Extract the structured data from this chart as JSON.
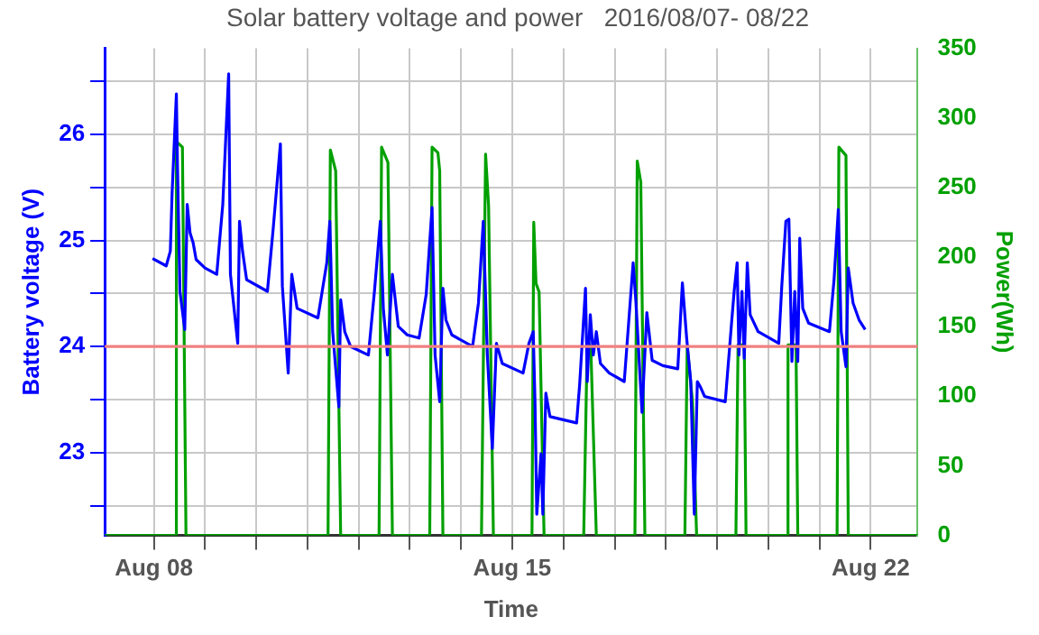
{
  "chart_data": {
    "type": "line",
    "title": "Solar battery voltage and power   2016/08/07- 08/22",
    "xlabel": "Time",
    "ylabel": "Battery voltage (V)",
    "y2label": "Power(Wh)",
    "xlim": [
      "2016-08-07T01:00",
      "2016-08-22T22:00"
    ],
    "xticks": [
      {
        "value": "2016-08-08",
        "label": "Aug 08"
      },
      {
        "value": "2016-08-09",
        "label": null
      },
      {
        "value": "2016-08-10",
        "label": null
      },
      {
        "value": "2016-08-11",
        "label": null
      },
      {
        "value": "2016-08-12",
        "label": null
      },
      {
        "value": "2016-08-13",
        "label": null
      },
      {
        "value": "2016-08-14",
        "label": null
      },
      {
        "value": "2016-08-15",
        "label": "Aug 15"
      },
      {
        "value": "2016-08-16",
        "label": null
      },
      {
        "value": "2016-08-17",
        "label": null
      },
      {
        "value": "2016-08-18",
        "label": null
      },
      {
        "value": "2016-08-19",
        "label": null
      },
      {
        "value": "2016-08-20",
        "label": null
      },
      {
        "value": "2016-08-21",
        "label": null
      },
      {
        "value": "2016-08-22",
        "label": "Aug 22"
      }
    ],
    "ylim": [
      22.22,
      26.81
    ],
    "yticks": [
      {
        "value": 22.5,
        "label": null
      },
      23,
      {
        "value": 23.5,
        "label": null
      },
      24,
      {
        "value": 24.5,
        "label": null
      },
      25,
      {
        "value": 25.5,
        "label": null
      },
      26,
      {
        "value": 26.5,
        "label": null
      }
    ],
    "y2lim": [
      0,
      350
    ],
    "y2ticks": [
      0,
      50,
      100,
      150,
      200,
      250,
      300,
      350
    ],
    "grid": true,
    "marker": "none",
    "line_style": "solid",
    "ref_lines": [
      {
        "axis": "y",
        "value": 24,
        "color": "#f08080"
      }
    ],
    "series": [
      {
        "color": "#0000ff",
        "axis": "y",
        "x": [
          "2016-08-07T23:25",
          "2016-08-08T05:50",
          "2016-08-08T07:45",
          "2016-08-08T08:35",
          "2016-08-08T10:35",
          "2016-08-08T11:05",
          "2016-08-08T12:15",
          "2016-08-08T14:30",
          "2016-08-08T15:40",
          "2016-08-08T17:00",
          "2016-08-08T18:25",
          "2016-08-08T19:50",
          "2016-08-09T00:00",
          "2016-08-09T05:30",
          "2016-08-09T08:20",
          "2016-08-09T11:05",
          "2016-08-09T11:55",
          "2016-08-09T15:20",
          "2016-08-09T16:10",
          "2016-08-09T17:35",
          "2016-08-09T19:30",
          "2016-08-10T05:15",
          "2016-08-10T08:00",
          "2016-08-10T11:20",
          "2016-08-10T12:15",
          "2016-08-10T15:00",
          "2016-08-10T16:40",
          "2016-08-10T19:10",
          "2016-08-11T04:55",
          "2016-08-11T09:05",
          "2016-08-11T10:30",
          "2016-08-11T11:50",
          "2016-08-11T14:45",
          "2016-08-11T15:35",
          "2016-08-11T17:30",
          "2016-08-11T20:15",
          "2016-08-12T04:35",
          "2016-08-12T07:25",
          "2016-08-12T10:10",
          "2016-08-12T11:35",
          "2016-08-12T13:30",
          "2016-08-12T15:50",
          "2016-08-12T18:35",
          "2016-08-12T22:45",
          "2016-08-13T04:20",
          "2016-08-13T07:40",
          "2016-08-13T10:25",
          "2016-08-13T11:50",
          "2016-08-13T14:00",
          "2016-08-13T15:30",
          "2016-08-13T16:55",
          "2016-08-13T19:40",
          "2016-08-14T05:25",
          "2016-08-14T08:10",
          "2016-08-14T10:25",
          "2016-08-14T12:20",
          "2016-08-14T14:40",
          "2016-08-14T16:35",
          "2016-08-14T19:20",
          "2016-08-15T05:05",
          "2016-08-15T07:50",
          "2016-08-15T09:50",
          "2016-08-15T10:40",
          "2016-08-15T11:30",
          "2016-08-15T13:30",
          "2016-08-15T14:20",
          "2016-08-15T15:45",
          "2016-08-15T17:40",
          "2016-08-16T06:10",
          "2016-08-16T07:35",
          "2016-08-16T10:20",
          "2016-08-16T11:10",
          "2016-08-16T12:35",
          "2016-08-16T14:00",
          "2016-08-16T15:25",
          "2016-08-16T17:20",
          "2016-08-16T21:30",
          "2016-08-17T04:30",
          "2016-08-17T08:40",
          "2016-08-17T10:00",
          "2016-08-17T12:50",
          "2016-08-17T15:05",
          "2016-08-17T17:35",
          "2016-08-17T22:35",
          "2016-08-18T05:35",
          "2016-08-18T07:45",
          "2016-08-18T09:45",
          "2016-08-18T11:40",
          "2016-08-18T13:20",
          "2016-08-18T14:45",
          "2016-08-18T16:10",
          "2016-08-18T18:10",
          "2016-08-19T03:50",
          "2016-08-19T06:40",
          "2016-08-19T08:00",
          "2016-08-19T09:25",
          "2016-08-19T10:15",
          "2016-08-19T11:40",
          "2016-08-19T12:45",
          "2016-08-19T14:10",
          "2016-08-19T15:30",
          "2016-08-19T19:15",
          "2016-08-20T04:55",
          "2016-08-20T06:20",
          "2016-08-20T08:15",
          "2016-08-20T09:40",
          "2016-08-20T11:05",
          "2016-08-20T12:25",
          "2016-08-20T13:50",
          "2016-08-20T14:45",
          "2016-08-20T16:10",
          "2016-08-20T18:55",
          "2016-08-21T04:40",
          "2016-08-21T06:50",
          "2016-08-21T08:50",
          "2016-08-21T10:10",
          "2016-08-21T12:25",
          "2016-08-21T13:30",
          "2016-08-21T15:45",
          "2016-08-21T18:35",
          "2016-08-21T21:25"
        ],
        "values": [
          24.83,
          24.76,
          24.9,
          25.45,
          26.38,
          25.72,
          24.52,
          24.16,
          25.34,
          25.07,
          24.98,
          24.82,
          24.74,
          24.68,
          25.34,
          26.57,
          24.68,
          24.03,
          25.18,
          24.9,
          24.63,
          24.52,
          25.12,
          25.91,
          24.57,
          23.75,
          24.68,
          24.36,
          24.27,
          24.79,
          25.18,
          24.14,
          23.43,
          24.44,
          24.14,
          24.0,
          23.92,
          24.52,
          25.18,
          24.36,
          23.92,
          24.68,
          24.19,
          24.11,
          24.08,
          24.49,
          25.31,
          23.92,
          23.48,
          24.55,
          24.25,
          24.11,
          24.0,
          24.41,
          25.18,
          23.92,
          23.04,
          24.03,
          23.84,
          23.75,
          24.03,
          24.14,
          23.48,
          22.42,
          22.99,
          22.42,
          23.56,
          23.34,
          23.28,
          23.64,
          24.55,
          23.67,
          24.3,
          23.92,
          24.14,
          23.84,
          23.75,
          23.67,
          24.79,
          24.41,
          23.38,
          24.32,
          23.87,
          23.82,
          23.79,
          24.6,
          24.08,
          23.67,
          22.42,
          23.67,
          23.62,
          23.53,
          23.48,
          24.19,
          24.52,
          24.79,
          23.92,
          24.52,
          23.89,
          24.79,
          24.3,
          24.14,
          24.03,
          24.57,
          25.18,
          25.2,
          23.86,
          24.52,
          23.86,
          25.02,
          24.36,
          24.22,
          24.14,
          24.63,
          25.29,
          24.14,
          23.81,
          24.74,
          24.41,
          24.25,
          24.16
        ]
      },
      {
        "color": "#00a000",
        "axis": "y2",
        "x": [
          "2016-08-07T01:00",
          "2016-08-08T10:00",
          "2016-08-08T10:35",
          "2016-08-08T13:25",
          "2016-08-08T15:05",
          "2016-08-11T09:40",
          "2016-08-11T10:45",
          "2016-08-11T13:15",
          "2016-08-11T15:35",
          "2016-08-12T09:35",
          "2016-08-12T10:45",
          "2016-08-12T13:45",
          "2016-08-12T15:50",
          "2016-08-13T09:20",
          "2016-08-13T10:25",
          "2016-08-13T13:10",
          "2016-08-13T14:00",
          "2016-08-13T15:30",
          "2016-08-14T09:35",
          "2016-08-14T11:30",
          "2016-08-14T12:55",
          "2016-08-14T15:10",
          "2016-08-15T09:15",
          "2016-08-15T10:05",
          "2016-08-15T11:10",
          "2016-08-15T12:35",
          "2016-08-15T14:55",
          "2016-08-16T09:30",
          "2016-08-16T11:10",
          "2016-08-16T12:50",
          "2016-08-16T15:25",
          "2016-08-17T09:30",
          "2016-08-17T10:35",
          "2016-08-17T12:15",
          "2016-08-17T14:10",
          "2016-08-18T08:55",
          "2016-08-18T10:00",
          "2016-08-18T12:30",
          "2016-08-18T14:25",
          "2016-08-19T08:50",
          "2016-08-19T09:50",
          "2016-08-19T12:45",
          "2016-08-19T13:35",
          "2016-08-20T08:35",
          "2016-08-20T09:15",
          "2016-08-20T13:00",
          "2016-08-20T13:50",
          "2016-08-21T08:15",
          "2016-08-21T09:05",
          "2016-08-21T12:25",
          "2016-08-21T13:30",
          "2016-08-22T22:00"
        ],
        "values": [
          0,
          0,
          283,
          279,
          0,
          0,
          277,
          262,
          0,
          0,
          279,
          268,
          0,
          0,
          279,
          275,
          262,
          0,
          0,
          274,
          237,
          0,
          0,
          225,
          181,
          175,
          0,
          0,
          140,
          135,
          0,
          0,
          269,
          254,
          0,
          0,
          136,
          96,
          0,
          0,
          137,
          137,
          0,
          0,
          137,
          137,
          0,
          0,
          279,
          273,
          0,
          0
        ]
      }
    ]
  }
}
